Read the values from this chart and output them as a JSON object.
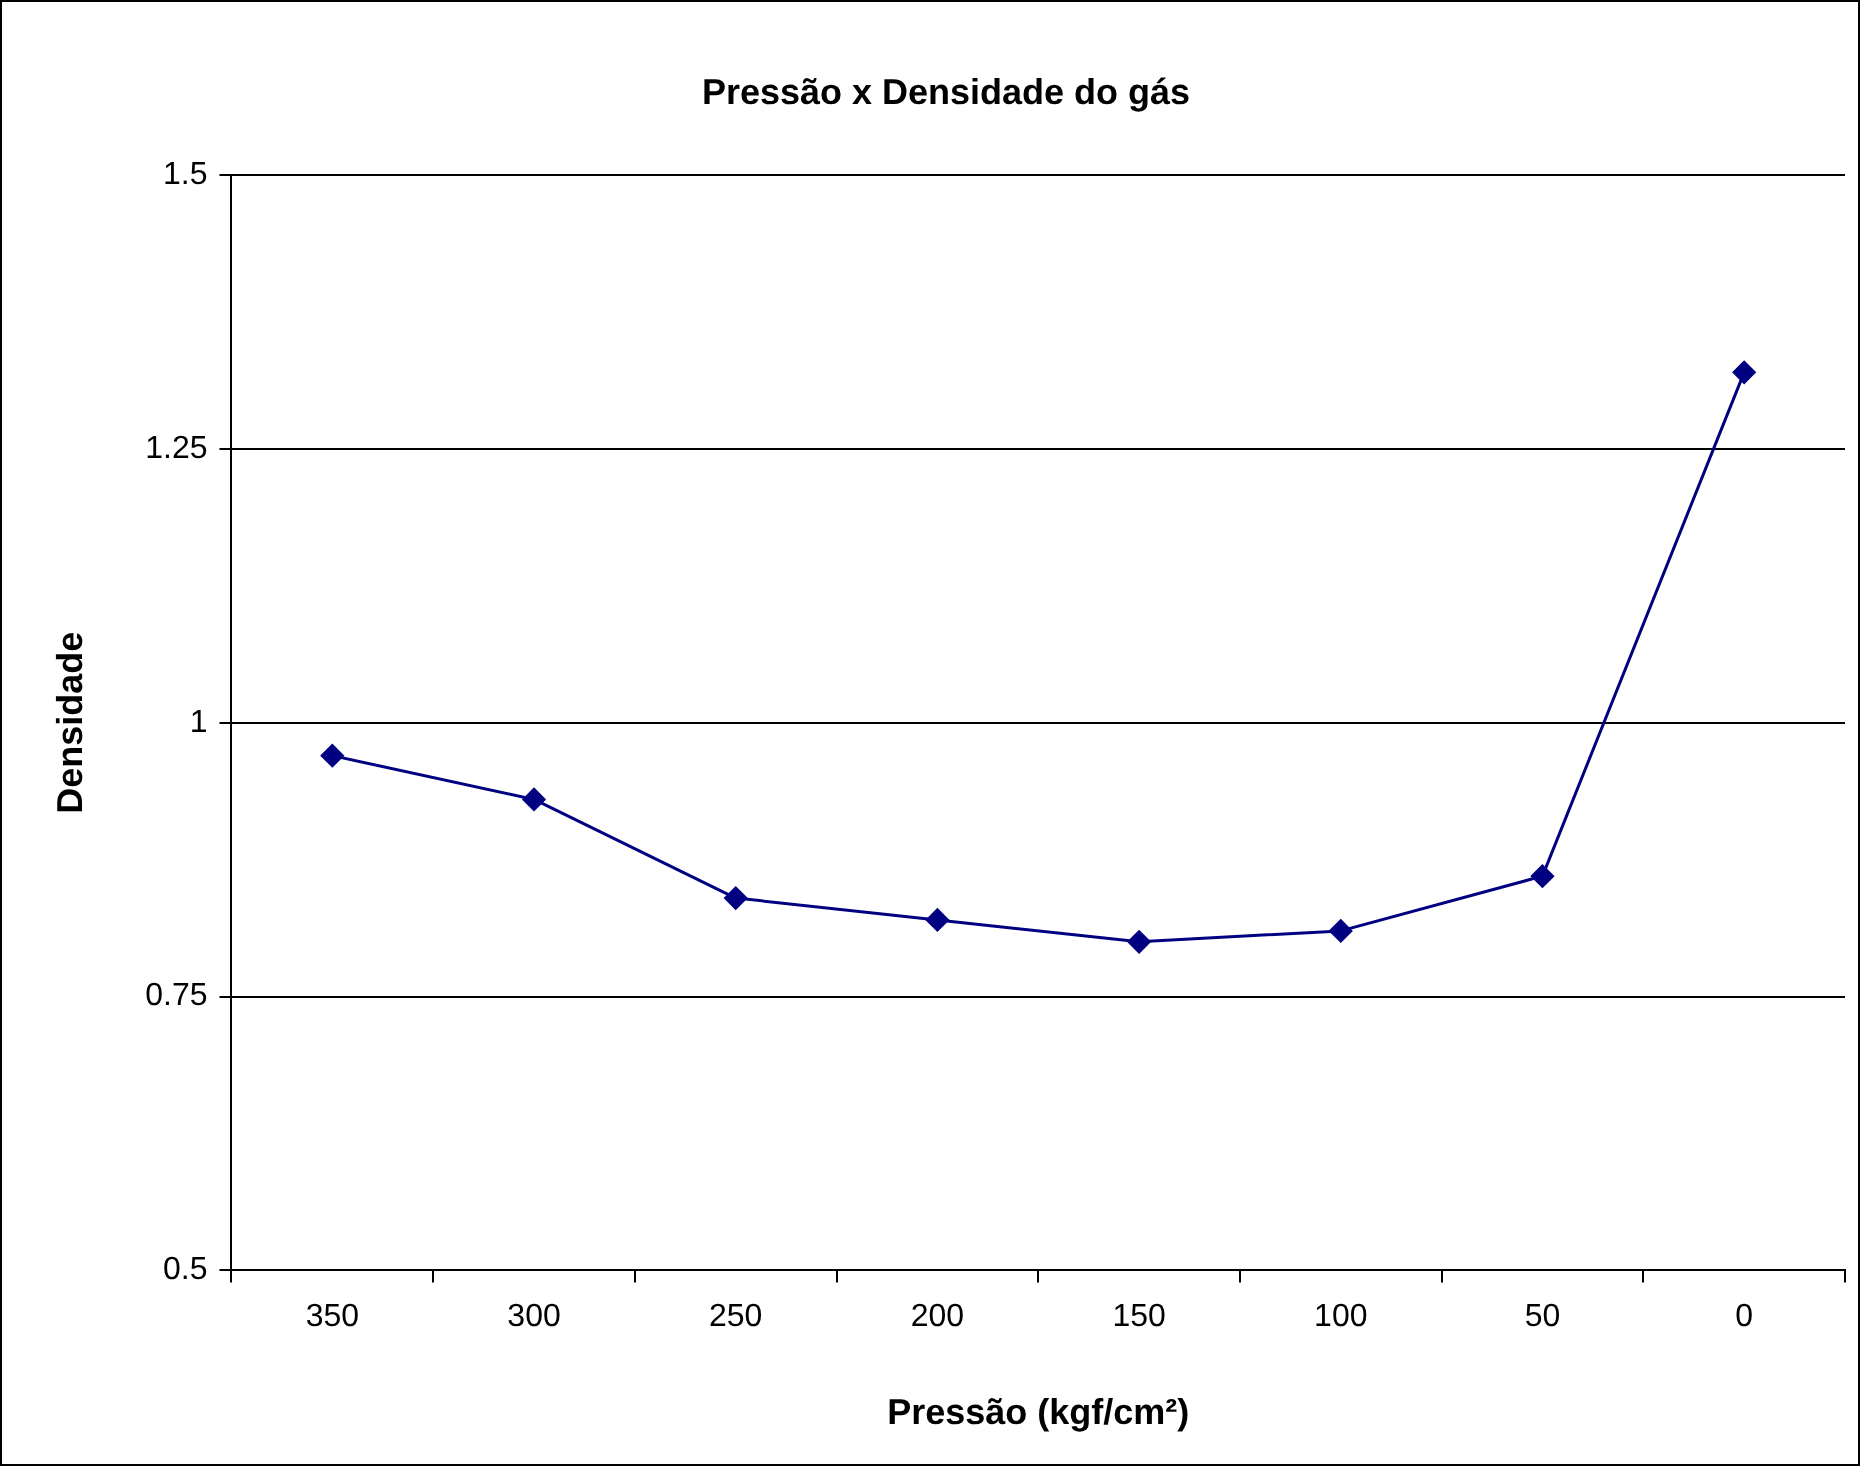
{
  "chart_data": {
    "type": "line",
    "title": "Pressão x Densidade do gás",
    "xlabel": "Pressão (kgf/cm²)",
    "ylabel": "Densidade",
    "categories": [
      "350",
      "300",
      "250",
      "200",
      "150",
      "100",
      "50",
      "0"
    ],
    "series": [
      {
        "color": "#000080",
        "values": [
          0.97,
          0.93,
          0.84,
          0.82,
          0.8,
          0.81,
          0.86,
          1.32
        ]
      }
    ],
    "ylim": [
      0.5,
      1.5
    ],
    "yticks": [
      0.5,
      0.75,
      1,
      1.25,
      1.5
    ],
    "grid": "y",
    "legend": false,
    "marker": "diamond",
    "line_style": "solid"
  }
}
